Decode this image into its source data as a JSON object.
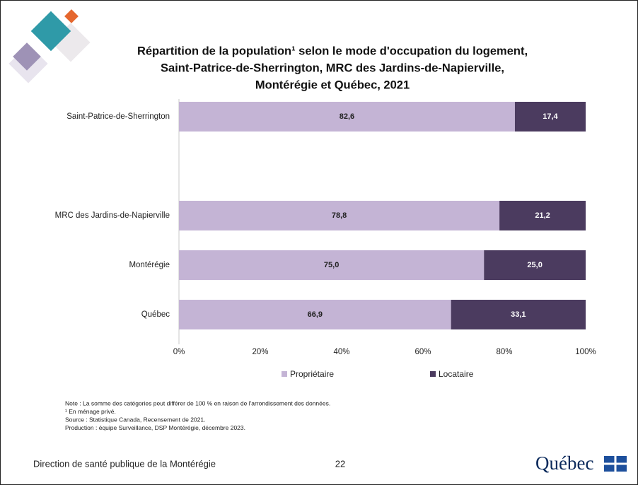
{
  "chart_data": {
    "type": "bar",
    "orientation": "horizontal",
    "stacked": true,
    "title": [
      "Répartition de la population¹ selon le mode d'occupation du logement,",
      "Saint-Patrice-de-Sherrington, MRC des Jardins-de-Napierville,",
      "Montérégie et Québec, 2021"
    ],
    "categories": [
      "Saint-Patrice-de-Sherrington",
      null,
      "MRC des Jardins-de-Napierville",
      "Montérégie",
      "Québec"
    ],
    "series": [
      {
        "name": "Propriétaire",
        "color": "#c4b4d5",
        "label_color": "#222222",
        "values": [
          82.6,
          null,
          78.8,
          75.0,
          66.9
        ],
        "value_labels": [
          "82,6",
          null,
          "78,8",
          "75,0",
          "66,9"
        ]
      },
      {
        "name": "Locataire",
        "color": "#4b3b5f",
        "label_color": "#ffffff",
        "values": [
          17.4,
          null,
          21.2,
          25.0,
          33.1
        ],
        "value_labels": [
          "17,4",
          null,
          "21,2",
          "25,0",
          "33,1"
        ]
      }
    ],
    "xlim": [
      0,
      100
    ],
    "xticks": [
      {
        "value": 0,
        "label": "0%"
      },
      {
        "value": 20,
        "label": "20%"
      },
      {
        "value": 40,
        "label": "40%"
      },
      {
        "value": 60,
        "label": "60%"
      },
      {
        "value": 80,
        "label": "80%"
      },
      {
        "value": 100,
        "label": "100%"
      }
    ],
    "legend": "bottom"
  },
  "notes": [
    "Note : La somme des catégories peut différer de 100 % en raison de l'arrondissement des données.",
    "¹ En ménage privé.",
    "Source : Statistique Canada, Recensement de 2021.",
    "Production : équipe Surveillance, DSP Montérégie, décembre 2023."
  ],
  "footer": {
    "organization": "Direction de santé publique de la Montérégie",
    "page": "22",
    "logo": "Québec"
  }
}
